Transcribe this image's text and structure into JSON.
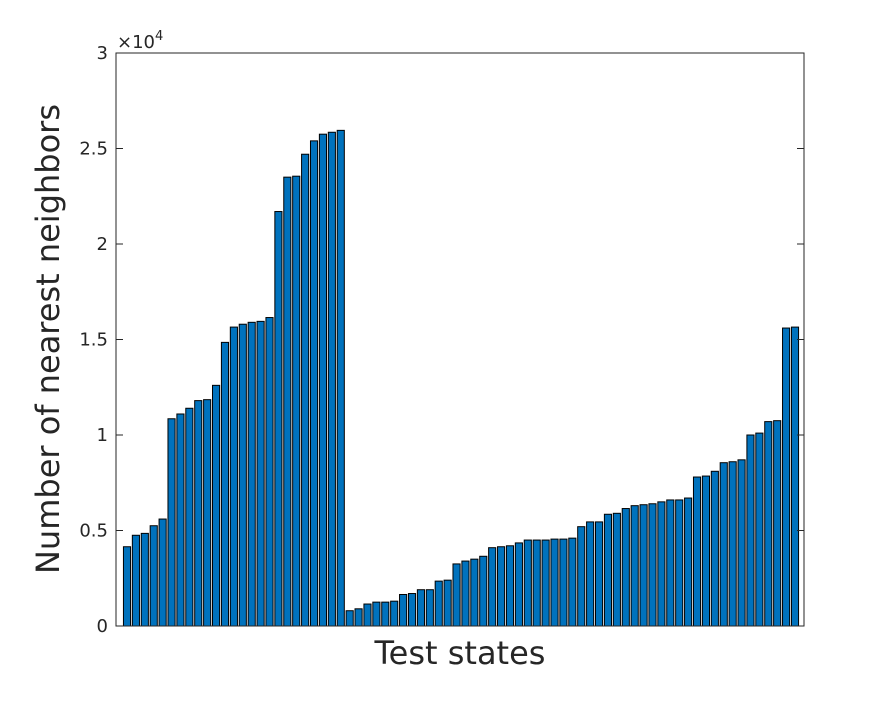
{
  "chart_data": {
    "type": "bar",
    "xlabel": "Test states",
    "ylabel": "Number of nearest neighbors",
    "ylim": [
      0,
      30000
    ],
    "y_exponent_label": "×10",
    "y_exponent_power": "4",
    "y_ticks": [
      0,
      5000,
      10000,
      15000,
      20000,
      25000,
      30000
    ],
    "y_tick_labels": [
      "0",
      "0.5",
      "1",
      "1.5",
      "2",
      "2.5",
      "3"
    ],
    "grid": false,
    "bar_color": "#0072BD",
    "values": [
      4150,
      4750,
      4850,
      5250,
      5600,
      10850,
      11100,
      11400,
      11800,
      11850,
      12600,
      14850,
      15650,
      15800,
      15900,
      15950,
      16150,
      21700,
      23500,
      23550,
      24700,
      25400,
      25750,
      25850,
      25950,
      800,
      900,
      1150,
      1250,
      1250,
      1300,
      1650,
      1700,
      1900,
      1900,
      2350,
      2400,
      3250,
      3400,
      3500,
      3650,
      4100,
      4150,
      4200,
      4350,
      4500,
      4500,
      4500,
      4550,
      4550,
      4600,
      5200,
      5450,
      5450,
      5850,
      5900,
      6150,
      6300,
      6350,
      6400,
      6500,
      6600,
      6600,
      6700,
      7800,
      7850,
      8100,
      8550,
      8600,
      8700,
      10000,
      10100,
      10700,
      10750,
      15600,
      15650
    ]
  }
}
